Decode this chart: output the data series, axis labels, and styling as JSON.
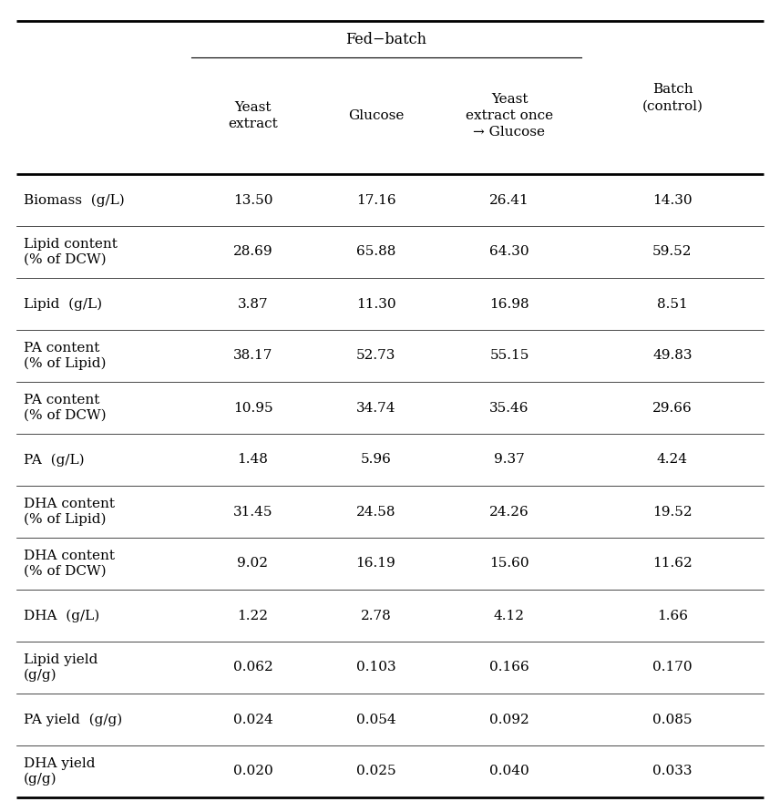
{
  "fed_batch_label": "Fed−batch",
  "col_headers_fedbatch": [
    "Yeast\nextract",
    "Glucose",
    "Yeast\nextract once\n→ Glucose"
  ],
  "col_header_batch": "Batch\n(control)",
  "row_labels": [
    "Biomass  (g/L)",
    "Lipid content\n(% of DCW)",
    "Lipid  (g/L)",
    "PA content\n(% of Lipid)",
    "PA content\n(% of DCW)",
    "PA  (g/L)",
    "DHA content\n(% of Lipid)",
    "DHA content\n(% of DCW)",
    "DHA  (g/L)",
    "Lipid yield\n(g/g)",
    "PA yield  (g/g)",
    "DHA yield\n(g/g)"
  ],
  "data": [
    [
      "13.50",
      "17.16",
      "26.41",
      "14.30"
    ],
    [
      "28.69",
      "65.88",
      "64.30",
      "59.52"
    ],
    [
      "3.87",
      "11.30",
      "16.98",
      "8.51"
    ],
    [
      "38.17",
      "52.73",
      "55.15",
      "49.83"
    ],
    [
      "10.95",
      "34.74",
      "35.46",
      "29.66"
    ],
    [
      "1.48",
      "5.96",
      "9.37",
      "4.24"
    ],
    [
      "31.45",
      "24.58",
      "24.26",
      "19.52"
    ],
    [
      "9.02",
      "16.19",
      "15.60",
      "11.62"
    ],
    [
      "1.22",
      "2.78",
      "4.12",
      "1.66"
    ],
    [
      "0.062",
      "0.103",
      "0.166",
      "0.170"
    ],
    [
      "0.024",
      "0.054",
      "0.092",
      "0.085"
    ],
    [
      "0.020",
      "0.025",
      "0.040",
      "0.033"
    ]
  ],
  "bg_color": "#ffffff",
  "text_color": "#000000",
  "font_size": 11.5,
  "header_font_size": 11.5
}
